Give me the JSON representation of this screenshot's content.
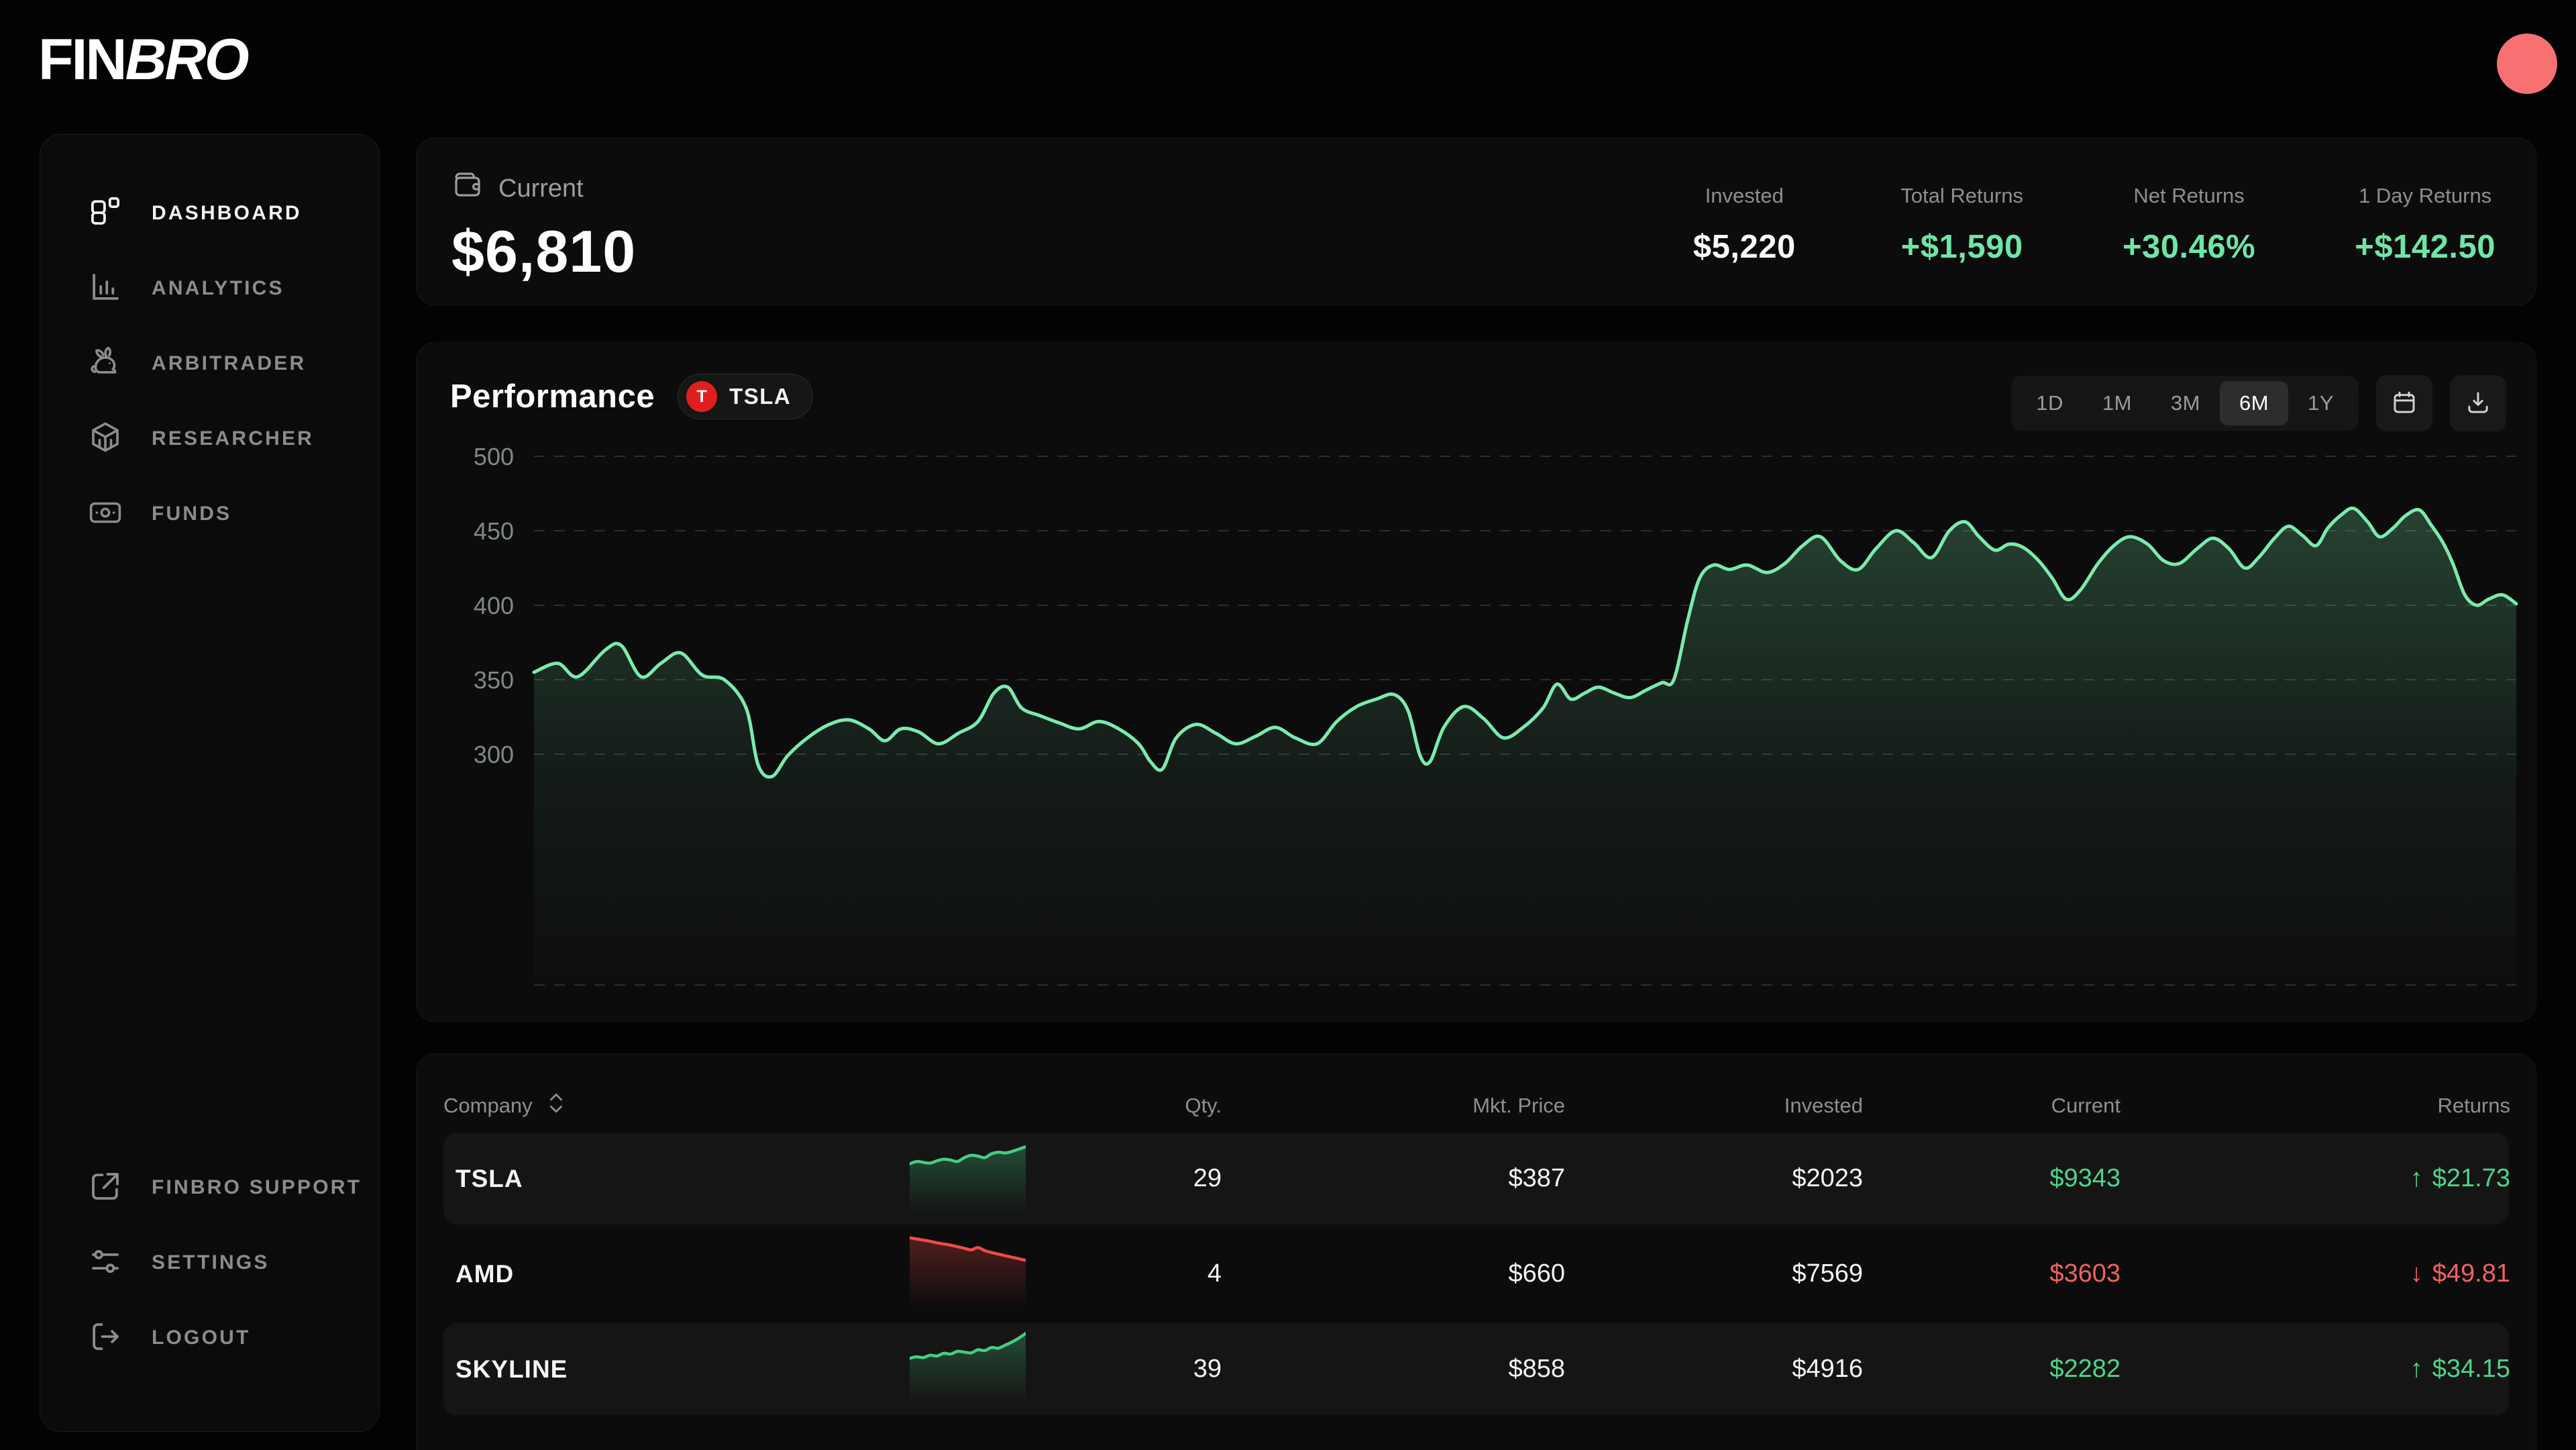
{
  "brand": {
    "fin": "FIN",
    "bro": "BRO"
  },
  "avatar": {
    "color": "#F87171"
  },
  "sidebar": {
    "items": [
      {
        "label": "DASHBOARD",
        "icon": "dashboard-grid",
        "active": true
      },
      {
        "label": "ANALYTICS",
        "icon": "bar-chart",
        "active": false
      },
      {
        "label": "ARBITRADER",
        "icon": "rabbit",
        "active": false
      },
      {
        "label": "RESEARCHER",
        "icon": "cube",
        "active": false
      },
      {
        "label": "FUNDS",
        "icon": "banknote",
        "active": false
      }
    ],
    "footer": [
      {
        "label": "FINBRO SUPPORT",
        "icon": "external-link"
      },
      {
        "label": "SETTINGS",
        "icon": "sliders"
      },
      {
        "label": "LOGOUT",
        "icon": "logout"
      }
    ]
  },
  "summary": {
    "label": "Current",
    "value": "$6,810",
    "stats": [
      {
        "label": "Invested",
        "value": "$5,220",
        "positive": false
      },
      {
        "label": "Total Returns",
        "value": "+$1,590",
        "positive": true
      },
      {
        "label": "Net Returns",
        "value": "+30.46%",
        "positive": true
      },
      {
        "label": "1 Day Returns",
        "value": "+$142.50",
        "positive": true
      }
    ]
  },
  "performance": {
    "title": "Performance",
    "ticker": "TSLA",
    "ticker_initial": "T",
    "ranges": [
      "1D",
      "1M",
      "3M",
      "6M",
      "1Y"
    ],
    "active_range": "6M"
  },
  "chart_data": {
    "type": "area",
    "title": "Performance",
    "series_name": "TSLA",
    "timeframe": "6M",
    "y_ticks": [
      500,
      450,
      400,
      350,
      300
    ],
    "ylim": [
      145,
      513
    ],
    "grid": "dashed-horizontal",
    "legend": "none",
    "line_color": "#7BEBAD",
    "points": [
      [
        0,
        355
      ],
      [
        0.012,
        361
      ],
      [
        0.022,
        352
      ],
      [
        0.036,
        370
      ],
      [
        0.044,
        373
      ],
      [
        0.054,
        352
      ],
      [
        0.064,
        361
      ],
      [
        0.074,
        368
      ],
      [
        0.085,
        353
      ],
      [
        0.096,
        350
      ],
      [
        0.107,
        331
      ],
      [
        0.113,
        293
      ],
      [
        0.12,
        285
      ],
      [
        0.128,
        299
      ],
      [
        0.138,
        311
      ],
      [
        0.149,
        320
      ],
      [
        0.159,
        323
      ],
      [
        0.169,
        317
      ],
      [
        0.177,
        309
      ],
      [
        0.185,
        317
      ],
      [
        0.194,
        315
      ],
      [
        0.204,
        307
      ],
      [
        0.214,
        314
      ],
      [
        0.224,
        322
      ],
      [
        0.232,
        341
      ],
      [
        0.239,
        345
      ],
      [
        0.246,
        331
      ],
      [
        0.255,
        326
      ],
      [
        0.265,
        321
      ],
      [
        0.275,
        317
      ],
      [
        0.285,
        322
      ],
      [
        0.295,
        317
      ],
      [
        0.305,
        307
      ],
      [
        0.311,
        295
      ],
      [
        0.317,
        290
      ],
      [
        0.324,
        311
      ],
      [
        0.334,
        320
      ],
      [
        0.344,
        314
      ],
      [
        0.354,
        307
      ],
      [
        0.364,
        312
      ],
      [
        0.374,
        318
      ],
      [
        0.384,
        311
      ],
      [
        0.395,
        307
      ],
      [
        0.405,
        322
      ],
      [
        0.415,
        332
      ],
      [
        0.425,
        337
      ],
      [
        0.434,
        340
      ],
      [
        0.441,
        329
      ],
      [
        0.447,
        299
      ],
      [
        0.452,
        295
      ],
      [
        0.459,
        318
      ],
      [
        0.469,
        332
      ],
      [
        0.479,
        324
      ],
      [
        0.489,
        311
      ],
      [
        0.499,
        318
      ],
      [
        0.509,
        331
      ],
      [
        0.516,
        347
      ],
      [
        0.523,
        337
      ],
      [
        0.53,
        341
      ],
      [
        0.537,
        345
      ],
      [
        0.545,
        341
      ],
      [
        0.553,
        338
      ],
      [
        0.561,
        343
      ],
      [
        0.569,
        348
      ],
      [
        0.575,
        350
      ],
      [
        0.582,
        390
      ],
      [
        0.588,
        418
      ],
      [
        0.595,
        427
      ],
      [
        0.603,
        424
      ],
      [
        0.612,
        427
      ],
      [
        0.622,
        422
      ],
      [
        0.631,
        428
      ],
      [
        0.64,
        440
      ],
      [
        0.649,
        446
      ],
      [
        0.659,
        430
      ],
      [
        0.668,
        424
      ],
      [
        0.677,
        438
      ],
      [
        0.687,
        450
      ],
      [
        0.696,
        442
      ],
      [
        0.705,
        432
      ],
      [
        0.714,
        450
      ],
      [
        0.722,
        456
      ],
      [
        0.729,
        446
      ],
      [
        0.737,
        437
      ],
      [
        0.744,
        441
      ],
      [
        0.751,
        439
      ],
      [
        0.759,
        430
      ],
      [
        0.766,
        418
      ],
      [
        0.773,
        404
      ],
      [
        0.78,
        410
      ],
      [
        0.789,
        428
      ],
      [
        0.797,
        440
      ],
      [
        0.805,
        446
      ],
      [
        0.814,
        441
      ],
      [
        0.822,
        430
      ],
      [
        0.83,
        428
      ],
      [
        0.839,
        438
      ],
      [
        0.847,
        445
      ],
      [
        0.855,
        438
      ],
      [
        0.863,
        425
      ],
      [
        0.87,
        432
      ],
      [
        0.878,
        445
      ],
      [
        0.885,
        453
      ],
      [
        0.892,
        447
      ],
      [
        0.899,
        440
      ],
      [
        0.905,
        452
      ],
      [
        0.912,
        461
      ],
      [
        0.918,
        465
      ],
      [
        0.925,
        456
      ],
      [
        0.931,
        446
      ],
      [
        0.938,
        452
      ],
      [
        0.944,
        460
      ],
      [
        0.951,
        464
      ],
      [
        0.957,
        454
      ],
      [
        0.963,
        442
      ],
      [
        0.968,
        428
      ],
      [
        0.974,
        407
      ],
      [
        0.98,
        400
      ],
      [
        0.986,
        404
      ],
      [
        0.993,
        407
      ],
      [
        1,
        401
      ]
    ]
  },
  "table": {
    "columns": {
      "company": "Company",
      "qty": "Qty.",
      "mkt_price": "Mkt. Price",
      "invested": "Invested",
      "current": "Current",
      "returns": "Returns"
    },
    "rows": [
      {
        "company": "TSLA",
        "qty": "29",
        "mkt_price": "$387",
        "invested": "$2023",
        "current": "$9343",
        "returns": "$21.73",
        "returns_arrow": "↑",
        "trend": "up",
        "highlight": true,
        "spark": [
          30,
          36,
          34,
          32,
          38,
          42,
          40,
          36,
          46,
          52,
          50,
          46,
          56,
          60,
          58,
          62,
          68,
          74
        ]
      },
      {
        "company": "AMD",
        "qty": "4",
        "mkt_price": "$660",
        "invested": "$7569",
        "current": "$3603",
        "returns": "$49.81",
        "returns_arrow": "↓",
        "trend": "down",
        "highlight": false,
        "spark": [
          85,
          82,
          79,
          76,
          72,
          69,
          66,
          62,
          58,
          54,
          60,
          52,
          47,
          43,
          39,
          35,
          31,
          27
        ]
      },
      {
        "company": "SKYLINE",
        "qty": "39",
        "mkt_price": "$858",
        "invested": "$4916",
        "current": "$2282",
        "returns": "$34.15",
        "returns_arrow": "↑",
        "trend": "up",
        "highlight": true,
        "spark": [
          20,
          24,
          22,
          28,
          26,
          33,
          31,
          38,
          36,
          34,
          42,
          40,
          48,
          46,
          54,
          62,
          72,
          84
        ]
      }
    ]
  },
  "colors": {
    "positive": "#6FE5A6",
    "table_positive": "#4FD488",
    "negative": "#F16260",
    "accent_line": "#7BEBAD",
    "spark_up": "#46CD82",
    "spark_down": "#F04B45",
    "avatar": "#F87171",
    "badge_red": "#DF1F1F"
  }
}
